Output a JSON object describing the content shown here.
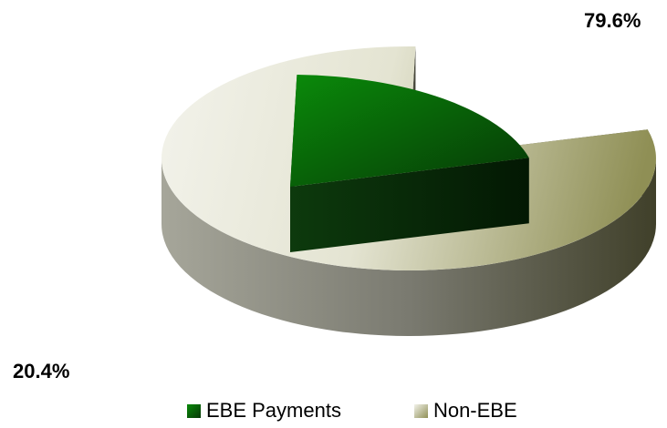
{
  "chart_data": {
    "type": "pie",
    "categories": [
      "EBE Payments",
      "Non-EBE"
    ],
    "values": [
      20.4,
      79.6
    ],
    "data_labels": [
      "20.4%",
      "79.6%"
    ],
    "colors": [
      "#1f7a1f",
      "#c9c9a8"
    ],
    "legend_position": "bottom",
    "exploded": "EBE Payments",
    "style": "3d"
  }
}
